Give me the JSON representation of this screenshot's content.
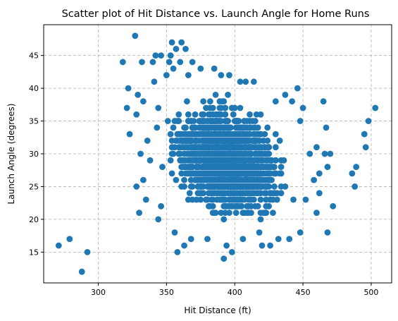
{
  "chart_data": {
    "type": "scatter",
    "title": "Scatter plot of Hit Distance vs. Launch Angle for Home Runs",
    "xlabel": "Hit Distance (ft)",
    "ylabel": "Launch Angle (degrees)",
    "xlim": [
      260,
      515
    ],
    "ylim": [
      10.3,
      49.7
    ],
    "xticks": [
      300,
      350,
      400,
      450,
      500
    ],
    "yticks": [
      15,
      20,
      25,
      30,
      35,
      40,
      45
    ],
    "grid": true,
    "marker_color": "#1f77b4",
    "series": [
      {
        "points": [
          [
            271,
            16
          ],
          [
            279,
            17
          ],
          [
            288,
            12
          ],
          [
            292,
            15
          ],
          [
            318,
            44
          ],
          [
            321,
            37
          ],
          [
            322,
            40
          ],
          [
            323,
            33
          ],
          [
            327,
            48
          ],
          [
            328,
            25
          ],
          [
            328,
            36
          ],
          [
            329,
            39
          ],
          [
            330,
            21
          ],
          [
            331,
            30
          ],
          [
            332,
            44
          ],
          [
            333,
            26
          ],
          [
            333,
            38
          ],
          [
            335,
            23
          ],
          [
            336,
            32
          ],
          [
            338,
            29
          ],
          [
            340,
            44
          ],
          [
            341,
            41
          ],
          [
            342,
            45
          ],
          [
            343,
            34
          ],
          [
            344,
            20
          ],
          [
            344,
            37
          ],
          [
            346,
            22
          ],
          [
            346,
            45
          ],
          [
            347,
            28
          ],
          [
            350,
            42
          ],
          [
            352,
            44
          ],
          [
            353,
            45
          ],
          [
            354,
            47
          ],
          [
            355,
            43
          ],
          [
            356,
            18
          ],
          [
            357,
            46
          ],
          [
            358,
            15
          ],
          [
            360,
            44
          ],
          [
            361,
            47
          ],
          [
            363,
            16
          ],
          [
            364,
            46
          ],
          [
            366,
            42
          ],
          [
            368,
            17
          ],
          [
            369,
            44
          ],
          [
            375,
            43
          ],
          [
            380,
            17
          ],
          [
            385,
            43
          ],
          [
            390,
            42
          ],
          [
            392,
            14
          ],
          [
            394,
            16
          ],
          [
            396,
            42
          ],
          [
            398,
            15
          ],
          [
            404,
            41
          ],
          [
            406,
            17
          ],
          [
            408,
            41
          ],
          [
            414,
            41
          ],
          [
            420,
            16
          ],
          [
            426,
            16
          ],
          [
            430,
            38
          ],
          [
            432,
            17
          ],
          [
            437,
            39
          ],
          [
            440,
            17
          ],
          [
            442,
            38
          ],
          [
            446,
            40
          ],
          [
            448,
            35
          ],
          [
            448,
            18
          ],
          [
            450,
            37
          ],
          [
            452,
            23
          ],
          [
            455,
            30
          ],
          [
            458,
            26
          ],
          [
            460,
            21
          ],
          [
            460,
            31
          ],
          [
            462,
            24
          ],
          [
            462,
            27
          ],
          [
            465,
            38
          ],
          [
            466,
            30
          ],
          [
            467,
            34
          ],
          [
            468,
            28
          ],
          [
            468,
            18
          ],
          [
            470,
            30
          ],
          [
            472,
            22
          ],
          [
            486,
            27
          ],
          [
            488,
            25
          ],
          [
            489,
            28
          ],
          [
            495,
            33
          ],
          [
            496,
            31
          ],
          [
            498,
            35
          ],
          [
            503,
            37
          ]
        ],
        "dense_cloud": {
          "x_range": [
            333,
            463
          ],
          "y_range": [
            17,
            42
          ],
          "center": [
            395,
            29
          ]
        }
      }
    ]
  }
}
